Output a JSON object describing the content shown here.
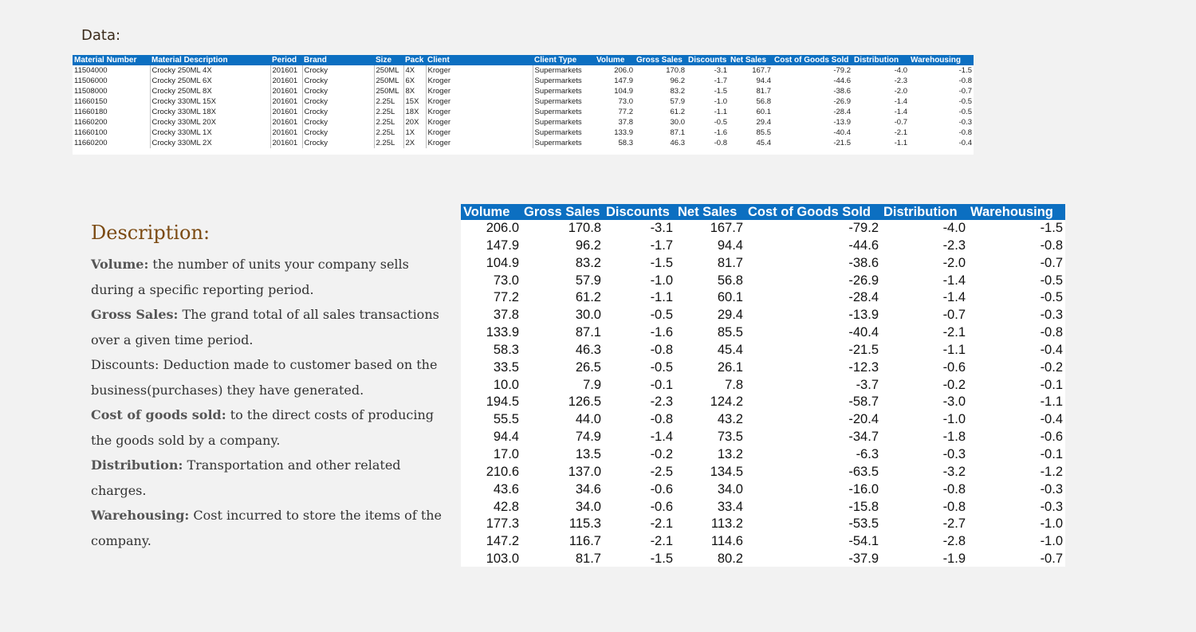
{
  "data_heading": "Data:",
  "source_table": {
    "columns": [
      "Material Number",
      "Material Description",
      "Period",
      "Brand",
      "Size",
      "Pack",
      "Client",
      "Client Type",
      "Volume",
      "Gross Sales",
      "Discounts",
      "Net Sales",
      "Cost of Goods Sold",
      "Distribution",
      "Warehousing"
    ],
    "rows": [
      [
        "11504000",
        "Crocky 250ML 4X",
        "201601",
        "Crocky",
        "250ML",
        "4X",
        "Kroger",
        "Supermarkets",
        "206.0",
        "170.8",
        "-3.1",
        "167.7",
        "-79.2",
        "-4.0",
        "-1.5"
      ],
      [
        "11506000",
        "Crocky 250ML 6X",
        "201601",
        "Crocky",
        "250ML",
        "6X",
        "Kroger",
        "Supermarkets",
        "147.9",
        "96.2",
        "-1.7",
        "94.4",
        "-44.6",
        "-2.3",
        "-0.8"
      ],
      [
        "11508000",
        "Crocky 250ML 8X",
        "201601",
        "Crocky",
        "250ML",
        "8X",
        "Kroger",
        "Supermarkets",
        "104.9",
        "83.2",
        "-1.5",
        "81.7",
        "-38.6",
        "-2.0",
        "-0.7"
      ],
      [
        "11660150",
        "Crocky 330ML 15X",
        "201601",
        "Crocky",
        "2.25L",
        "15X",
        "Kroger",
        "Supermarkets",
        "73.0",
        "57.9",
        "-1.0",
        "56.8",
        "-26.9",
        "-1.4",
        "-0.5"
      ],
      [
        "11660180",
        "Crocky 330ML 18X",
        "201601",
        "Crocky",
        "2.25L",
        "18X",
        "Kroger",
        "Supermarkets",
        "77.2",
        "61.2",
        "-1.1",
        "60.1",
        "-28.4",
        "-1.4",
        "-0.5"
      ],
      [
        "11660200",
        "Crocky 330ML 20X",
        "201601",
        "Crocky",
        "2.25L",
        "20X",
        "Kroger",
        "Supermarkets",
        "37.8",
        "30.0",
        "-0.5",
        "29.4",
        "-13.9",
        "-0.7",
        "-0.3"
      ],
      [
        "11660100",
        "Crocky 330ML 1X",
        "201601",
        "Crocky",
        "2.25L",
        "1X",
        "Kroger",
        "Supermarkets",
        "133.9",
        "87.1",
        "-1.6",
        "85.5",
        "-40.4",
        "-2.1",
        "-0.8"
      ],
      [
        "11660200",
        "Crocky 330ML 2X",
        "201601",
        "Crocky",
        "2.25L",
        "2X",
        "Kroger",
        "Supermarkets",
        "58.3",
        "46.3",
        "-0.8",
        "45.4",
        "-21.5",
        "-1.1",
        "-0.4"
      ]
    ]
  },
  "description": {
    "title": "Description:",
    "items": [
      {
        "term": "Volume:",
        "text": " the number of units your company sells during a specific reporting period."
      },
      {
        "term": "Gross Sales:",
        "text": " The grand total of all sales transactions over a given time period."
      },
      {
        "term": "",
        "text": "Discounts: Deduction made to customer based on the business(purchases) they have generated."
      },
      {
        "term": "Cost of goods sold:",
        "text": " to the direct costs of producing the goods sold by a company."
      },
      {
        "term": "Distribution:",
        "text": " Transportation and other related charges."
      },
      {
        "term": "Warehousing:",
        "text": " Cost incurred to store the items of the company."
      }
    ]
  },
  "metrics_table": {
    "columns": [
      "Volume",
      "Gross Sales",
      "Discounts",
      "Net Sales",
      "Cost of Goods Sold",
      "Distribution",
      "Warehousing"
    ],
    "rows": [
      [
        "206.0",
        "170.8",
        "-3.1",
        "167.7",
        "-79.2",
        "-4.0",
        "-1.5"
      ],
      [
        "147.9",
        "96.2",
        "-1.7",
        "94.4",
        "-44.6",
        "-2.3",
        "-0.8"
      ],
      [
        "104.9",
        "83.2",
        "-1.5",
        "81.7",
        "-38.6",
        "-2.0",
        "-0.7"
      ],
      [
        "73.0",
        "57.9",
        "-1.0",
        "56.8",
        "-26.9",
        "-1.4",
        "-0.5"
      ],
      [
        "77.2",
        "61.2",
        "-1.1",
        "60.1",
        "-28.4",
        "-1.4",
        "-0.5"
      ],
      [
        "37.8",
        "30.0",
        "-0.5",
        "29.4",
        "-13.9",
        "-0.7",
        "-0.3"
      ],
      [
        "133.9",
        "87.1",
        "-1.6",
        "85.5",
        "-40.4",
        "-2.1",
        "-0.8"
      ],
      [
        "58.3",
        "46.3",
        "-0.8",
        "45.4",
        "-21.5",
        "-1.1",
        "-0.4"
      ],
      [
        "33.5",
        "26.5",
        "-0.5",
        "26.1",
        "-12.3",
        "-0.6",
        "-0.2"
      ],
      [
        "10.0",
        "7.9",
        "-0.1",
        "7.8",
        "-3.7",
        "-0.2",
        "-0.1"
      ],
      [
        "194.5",
        "126.5",
        "-2.3",
        "124.2",
        "-58.7",
        "-3.0",
        "-1.1"
      ],
      [
        "55.5",
        "44.0",
        "-0.8",
        "43.2",
        "-20.4",
        "-1.0",
        "-0.4"
      ],
      [
        "94.4",
        "74.9",
        "-1.4",
        "73.5",
        "-34.7",
        "-1.8",
        "-0.6"
      ],
      [
        "17.0",
        "13.5",
        "-0.2",
        "13.2",
        "-6.3",
        "-0.3",
        "-0.1"
      ],
      [
        "210.6",
        "137.0",
        "-2.5",
        "134.5",
        "-63.5",
        "-3.2",
        "-1.2"
      ],
      [
        "43.6",
        "34.6",
        "-0.6",
        "34.0",
        "-16.0",
        "-0.8",
        "-0.3"
      ],
      [
        "42.8",
        "34.0",
        "-0.6",
        "33.4",
        "-15.8",
        "-0.8",
        "-0.3"
      ],
      [
        "177.3",
        "115.3",
        "-2.1",
        "113.2",
        "-53.5",
        "-2.7",
        "-1.0"
      ],
      [
        "147.2",
        "116.7",
        "-2.1",
        "114.6",
        "-54.1",
        "-2.8",
        "-1.0"
      ],
      [
        "103.0",
        "81.7",
        "-1.5",
        "80.2",
        "-37.9",
        "-1.9",
        "-0.7"
      ]
    ]
  }
}
